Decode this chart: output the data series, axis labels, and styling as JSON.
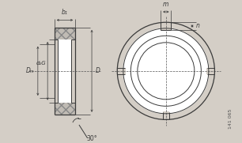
{
  "bg_color": "#d4cec6",
  "line_color": "#3a3a3a",
  "dim_color": "#3a3a3a",
  "fig_id": "141 065",
  "labels": {
    "b1": "b₁",
    "dm": "Dₘ",
    "d2g": "d₂G",
    "da": "D⁡",
    "angle": "30°",
    "m": "m",
    "n": "n"
  }
}
